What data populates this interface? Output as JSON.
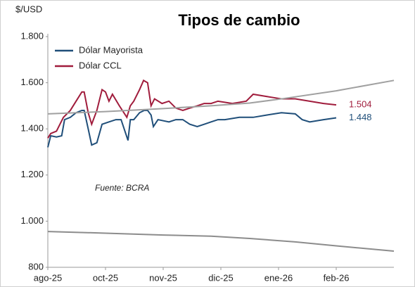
{
  "chart_data": {
    "type": "line",
    "title": "Tipos de cambio",
    "ylabel": "$/USD",
    "annotation": "Fuente: BCRA",
    "xlim": [
      0,
      6
    ],
    "xticks": [
      {
        "value": 0,
        "label": "ago-25"
      },
      {
        "value": 1,
        "label": "oct-25"
      },
      {
        "value": 2,
        "label": "nov-25"
      },
      {
        "value": 3,
        "label": "dic-25"
      },
      {
        "value": 4,
        "label": "ene-26"
      },
      {
        "value": 5,
        "label": "feb-26"
      }
    ],
    "ylim": [
      800,
      1800
    ],
    "yticks": [
      800,
      {
        "value": 1000,
        "label": "1.000"
      },
      {
        "value": 1200,
        "label": "1.200"
      },
      {
        "value": 1400,
        "label": "1.400"
      },
      {
        "value": 1600,
        "label": "1.600"
      },
      {
        "value": 1800,
        "label": "1.800"
      }
    ],
    "legend": "upper left",
    "series": [
      {
        "name": "Dólar Mayorista",
        "color": "#1f4e79",
        "x": [
          0,
          0.05,
          0.15,
          0.24,
          0.29,
          0.39,
          0.49,
          0.59,
          0.63,
          0.7,
          0.76,
          0.85,
          0.94,
          1.06,
          1.18,
          1.27,
          1.39,
          1.43,
          1.49,
          1.59,
          1.67,
          1.73,
          1.79,
          1.83,
          1.91,
          2.1,
          2.22,
          2.34,
          2.46,
          2.59,
          2.71,
          2.83,
          2.95,
          3.07,
          3.32,
          3.56,
          3.8,
          4.05,
          4.29,
          4.41,
          4.54,
          4.78,
          5.0
        ],
        "values": [
          1320,
          1370,
          1365,
          1370,
          1440,
          1450,
          1470,
          1480,
          1480,
          1400,
          1330,
          1340,
          1420,
          1430,
          1440,
          1440,
          1350,
          1440,
          1440,
          1470,
          1480,
          1480,
          1460,
          1410,
          1440,
          1430,
          1440,
          1440,
          1420,
          1410,
          1420,
          1430,
          1440,
          1440,
          1450,
          1450,
          1460,
          1470,
          1465,
          1440,
          1430,
          1440,
          1448
        ],
        "value_labels": [
          null,
          null,
          null,
          null,
          null,
          null,
          null,
          null,
          null,
          null,
          null,
          null,
          null,
          null,
          null,
          null,
          null,
          null,
          null,
          null,
          null,
          null,
          null,
          null,
          null,
          null,
          null,
          null,
          null,
          null,
          null,
          null,
          null,
          null,
          null,
          null,
          null,
          null,
          null,
          null,
          null,
          null,
          "1.448"
        ]
      },
      {
        "name": "Dólar CCL",
        "color": "#a01c3c",
        "x": [
          0,
          0.05,
          0.15,
          0.27,
          0.39,
          0.49,
          0.59,
          0.63,
          0.7,
          0.76,
          0.85,
          0.94,
          1.0,
          1.06,
          1.12,
          1.24,
          1.37,
          1.43,
          1.49,
          1.59,
          1.66,
          1.73,
          1.79,
          1.85,
          1.98,
          2.1,
          2.22,
          2.34,
          2.46,
          2.59,
          2.71,
          2.83,
          2.95,
          3.2,
          3.44,
          3.56,
          3.8,
          4.05,
          4.29,
          4.54,
          4.78,
          5.0
        ],
        "values": [
          1360,
          1380,
          1390,
          1450,
          1480,
          1520,
          1560,
          1560,
          1470,
          1420,
          1480,
          1570,
          1560,
          1520,
          1550,
          1500,
          1450,
          1500,
          1520,
          1570,
          1610,
          1600,
          1500,
          1530,
          1510,
          1520,
          1490,
          1480,
          1490,
          1500,
          1510,
          1510,
          1520,
          1510,
          1520,
          1550,
          1540,
          1530,
          1530,
          1520,
          1510,
          1504
        ],
        "value_labels": [
          null,
          null,
          null,
          null,
          null,
          null,
          null,
          null,
          null,
          null,
          null,
          null,
          null,
          null,
          null,
          null,
          null,
          null,
          null,
          null,
          null,
          null,
          null,
          null,
          null,
          null,
          null,
          null,
          null,
          null,
          null,
          null,
          null,
          null,
          null,
          null,
          null,
          null,
          null,
          null,
          null,
          "1.504"
        ]
      },
      {
        "color": "#a0a0a0",
        "x": [
          0,
          1,
          2,
          2.83,
          3.5,
          4.05,
          5.0,
          6.0
        ],
        "values": [
          1465,
          1475,
          1488,
          1500,
          1512,
          1530,
          1565,
          1610
        ]
      },
      {
        "color": "#8c8c8c",
        "x": [
          0,
          1,
          2,
          2.83,
          3.5,
          4.29,
          5.0,
          6.0
        ],
        "values": [
          955,
          948,
          940,
          935,
          925,
          910,
          893,
          870
        ]
      }
    ]
  }
}
